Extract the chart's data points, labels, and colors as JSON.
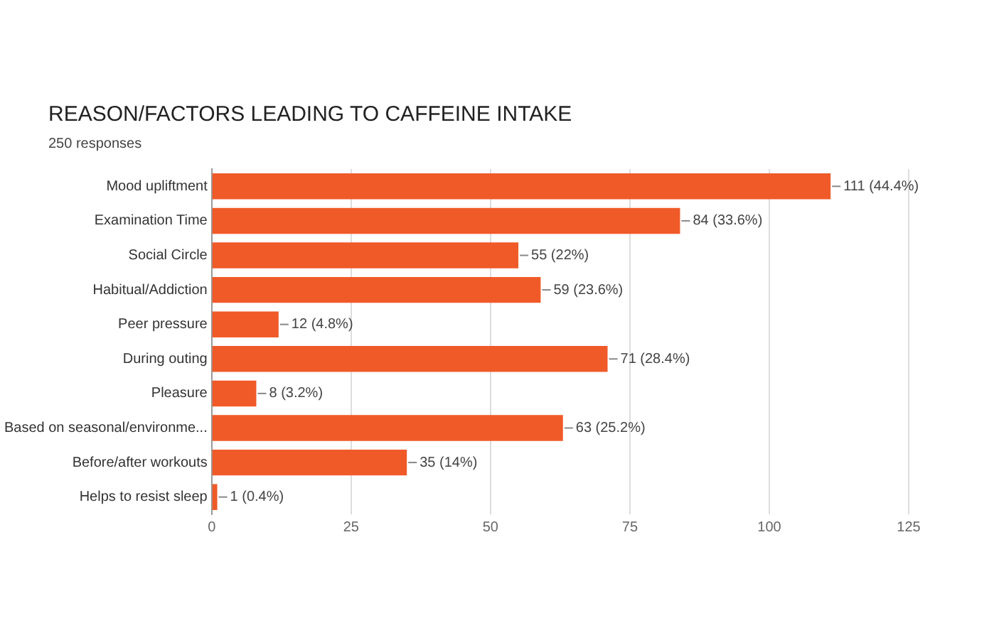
{
  "chart_data": {
    "type": "bar",
    "orientation": "horizontal",
    "title": "REASON/FACTORS LEADING TO CAFFEINE INTAKE",
    "subtitle": "250 responses",
    "categories": [
      "Mood upliftment",
      "Examination Time",
      "Social Circle",
      "Habitual/Addiction",
      "Peer pressure",
      "During outing",
      "Pleasure",
      "Based on seasonal/environme...",
      "Before/after workouts",
      "Helps to resist sleep"
    ],
    "values": [
      111,
      84,
      55,
      59,
      12,
      71,
      8,
      63,
      35,
      1
    ],
    "value_labels": [
      "111 (44.4%)",
      "84 (33.6%)",
      "55 (22%)",
      "59 (23.6%)",
      "12 (4.8%)",
      "71 (28.4%)",
      "8 (3.2%)",
      "63 (25.2%)",
      "35 (14%)",
      "1 (0.4%)"
    ],
    "color": "#f05a28",
    "xlim": [
      0,
      125
    ],
    "xticks": [
      0,
      25,
      50,
      75,
      100,
      125
    ],
    "grid": "x",
    "legend": false
  }
}
